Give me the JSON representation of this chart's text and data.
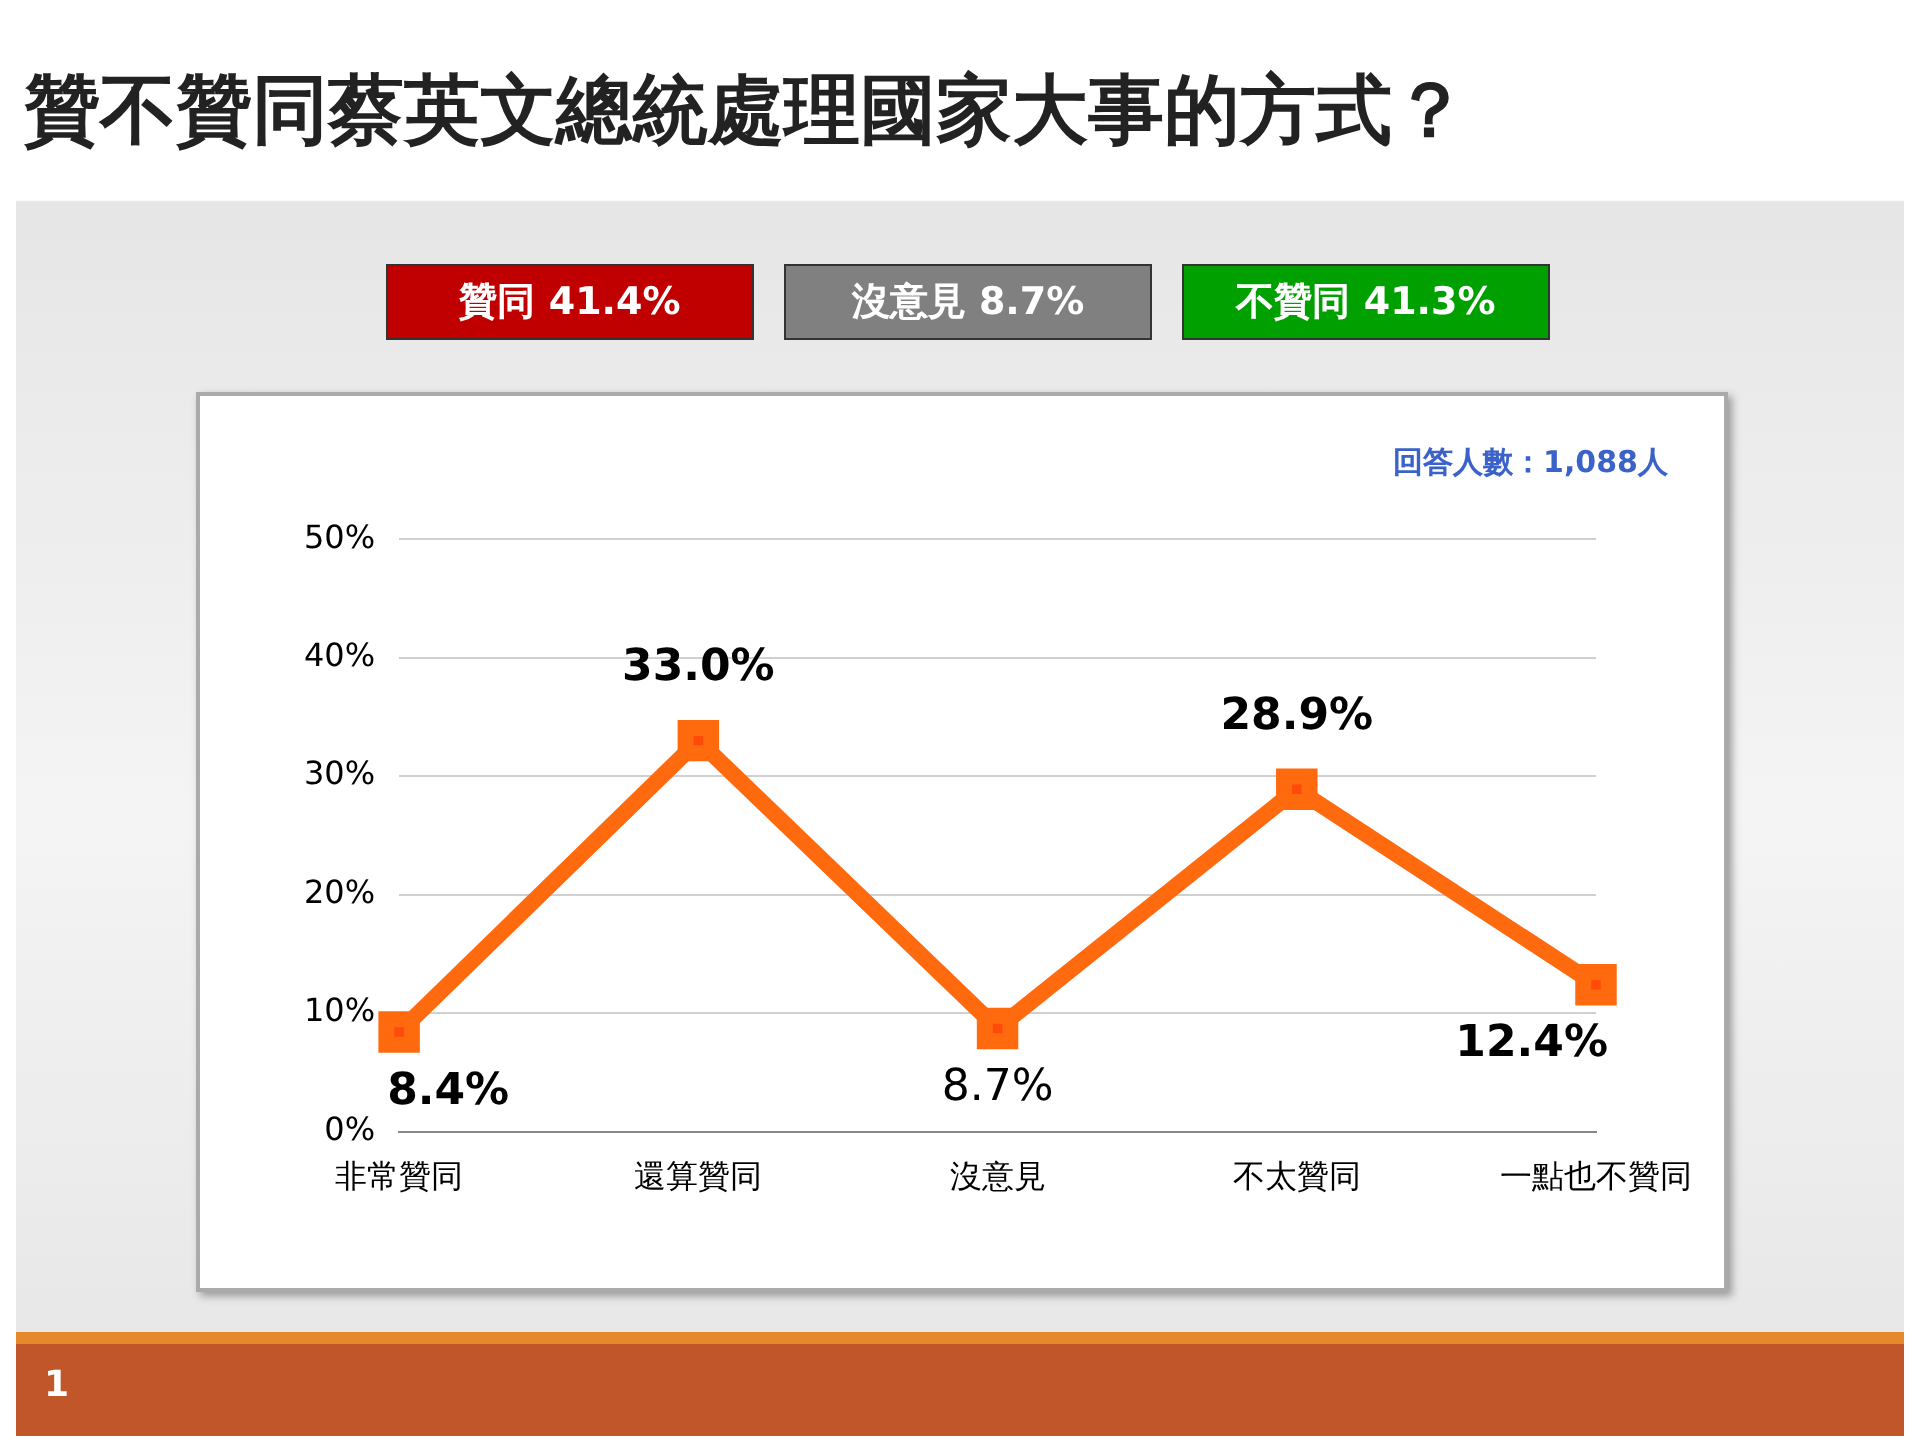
{
  "chart_data": {
    "type": "line",
    "title": "贊不贊同蔡英文總統處理國家大事的方式？",
    "categories": [
      "非常贊同",
      "還算贊同",
      "沒意見",
      "不太贊同",
      "一點也不贊同"
    ],
    "series": [
      {
        "color": "#ff6a0e",
        "values": [
          8.4,
          33.0,
          8.7,
          28.9,
          12.4
        ],
        "value_labels": [
          "8.4%",
          "33.0%",
          "8.7%",
          "28.9%",
          "12.4%"
        ]
      }
    ],
    "ylim": [
      0,
      50
    ],
    "yticks": [
      {
        "value": 0,
        "label": "0%"
      },
      {
        "value": 10,
        "label": "10%"
      },
      {
        "value": 20,
        "label": "20%"
      },
      {
        "value": 30,
        "label": "30%"
      },
      {
        "value": 40,
        "label": "40%"
      },
      {
        "value": 50,
        "label": "50%"
      }
    ],
    "grid": "y",
    "marker": "square",
    "line_style": "solid",
    "legend": false,
    "annotations": [
      "贊同 41.4%",
      "沒意見 8.7%",
      "不贊同 41.3%",
      "回答人數：1,088人",
      "1"
    ]
  }
}
